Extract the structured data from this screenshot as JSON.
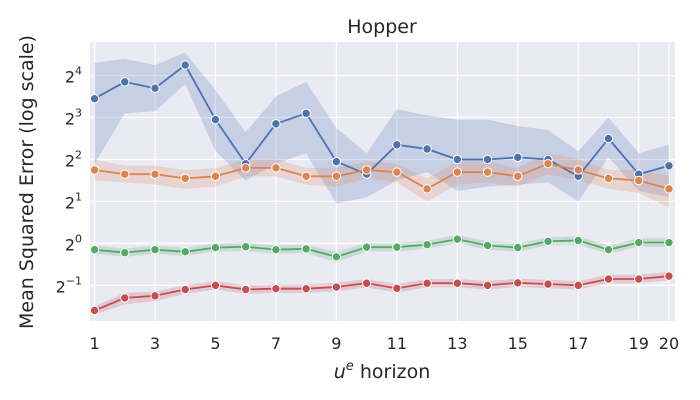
{
  "chart_data": {
    "type": "line",
    "title": "Hopper",
    "xlabel_main": "u",
    "xlabel_sup": "e",
    "xlabel_rest": " horizon",
    "ylabel": "Mean Squared Error (log scale)",
    "yscale": "log2",
    "x": [
      1,
      2,
      3,
      4,
      5,
      6,
      7,
      8,
      9,
      10,
      11,
      12,
      13,
      14,
      15,
      16,
      17,
      18,
      19,
      20
    ],
    "xticks": [
      {
        "value": 1,
        "label": "1"
      },
      {
        "value": 3,
        "label": "3"
      },
      {
        "value": 5,
        "label": "5"
      },
      {
        "value": 7,
        "label": "7"
      },
      {
        "value": 9,
        "label": "9"
      },
      {
        "value": 11,
        "label": "11"
      },
      {
        "value": 13,
        "label": "13"
      },
      {
        "value": 15,
        "label": "15"
      },
      {
        "value": 17,
        "label": "17"
      },
      {
        "value": 19,
        "label": "19"
      },
      {
        "value": 20,
        "label": "20"
      }
    ],
    "yticks": [
      {
        "exp": -1,
        "base": "2",
        "sup": "−1"
      },
      {
        "exp": 0,
        "base": "2",
        "sup": "0"
      },
      {
        "exp": 1,
        "base": "2",
        "sup": "1"
      },
      {
        "exp": 2,
        "base": "2",
        "sup": "2"
      },
      {
        "exp": 3,
        "base": "2",
        "sup": "3"
      },
      {
        "exp": 4,
        "base": "2",
        "sup": "4"
      }
    ],
    "ylim_log2": [
      -1.85,
      4.8
    ],
    "xlim": [
      0.85,
      20.2
    ],
    "grid": true,
    "series": [
      {
        "color": "#4c72b0",
        "log2_mean": [
          3.45,
          3.85,
          3.7,
          4.25,
          2.95,
          1.9,
          2.85,
          3.1,
          1.95,
          1.65,
          2.35,
          2.25,
          2.0,
          2.0,
          2.05,
          2.0,
          1.6,
          2.5,
          1.65,
          1.85
        ],
        "log2_lower": [
          1.9,
          3.1,
          3.15,
          3.8,
          2.2,
          1.5,
          1.9,
          2.15,
          0.95,
          1.1,
          1.5,
          1.7,
          1.25,
          1.35,
          1.4,
          1.45,
          1.0,
          2.05,
          1.25,
          1.1
        ],
        "log2_upper": [
          4.3,
          4.4,
          4.25,
          4.55,
          3.65,
          2.65,
          3.5,
          3.85,
          2.75,
          2.15,
          3.2,
          3.05,
          2.95,
          2.95,
          2.8,
          2.7,
          2.2,
          3.0,
          2.15,
          2.35
        ]
      },
      {
        "color": "#dd8452",
        "log2_mean": [
          1.75,
          1.65,
          1.65,
          1.55,
          1.6,
          1.8,
          1.8,
          1.6,
          1.6,
          1.75,
          1.7,
          1.3,
          1.7,
          1.7,
          1.6,
          1.9,
          1.75,
          1.55,
          1.5,
          1.3
        ],
        "log2_lower": [
          1.5,
          1.45,
          1.4,
          1.3,
          1.35,
          1.6,
          1.6,
          1.4,
          1.35,
          1.55,
          1.45,
          1.0,
          1.4,
          1.45,
          1.35,
          1.65,
          1.5,
          1.3,
          1.2,
          0.85
        ],
        "log2_upper": [
          2.0,
          1.85,
          1.85,
          1.75,
          1.8,
          2.0,
          2.0,
          1.8,
          1.8,
          1.95,
          1.9,
          1.55,
          1.95,
          1.95,
          1.8,
          2.15,
          2.0,
          1.75,
          1.75,
          1.6
        ]
      },
      {
        "color": "#55a868",
        "log2_mean": [
          -0.15,
          -0.22,
          -0.15,
          -0.2,
          -0.1,
          -0.08,
          -0.15,
          -0.13,
          -0.32,
          -0.09,
          -0.09,
          -0.03,
          0.1,
          -0.05,
          -0.1,
          0.05,
          0.07,
          -0.15,
          0.02,
          0.02
        ],
        "log2_lower": [
          -0.25,
          -0.32,
          -0.25,
          -0.3,
          -0.2,
          -0.18,
          -0.25,
          -0.23,
          -0.45,
          -0.19,
          -0.19,
          -0.13,
          0.0,
          -0.15,
          -0.2,
          -0.05,
          -0.03,
          -0.25,
          -0.08,
          -0.08
        ],
        "log2_upper": [
          -0.05,
          -0.12,
          -0.05,
          -0.1,
          0.0,
          0.02,
          -0.05,
          -0.03,
          -0.2,
          0.01,
          0.01,
          0.07,
          0.2,
          0.05,
          0.0,
          0.15,
          0.17,
          -0.05,
          0.12,
          0.12
        ]
      },
      {
        "color": "#c44e52",
        "log2_mean": [
          -1.6,
          -1.3,
          -1.25,
          -1.1,
          -1.0,
          -1.1,
          -1.08,
          -1.08,
          -1.04,
          -0.95,
          -1.07,
          -0.95,
          -0.95,
          -1.0,
          -0.94,
          -0.97,
          -1.0,
          -0.85,
          -0.85,
          -0.78
        ],
        "log2_lower": [
          -1.7,
          -1.45,
          -1.38,
          -1.2,
          -1.1,
          -1.2,
          -1.18,
          -1.18,
          -1.14,
          -1.05,
          -1.17,
          -1.05,
          -1.05,
          -1.1,
          -1.04,
          -1.07,
          -1.1,
          -0.95,
          -0.95,
          -0.88
        ],
        "log2_upper": [
          -1.5,
          -1.18,
          -1.15,
          -1.0,
          -0.9,
          -1.0,
          -0.98,
          -0.98,
          -0.94,
          -0.85,
          -0.97,
          -0.85,
          -0.85,
          -0.9,
          -0.84,
          -0.87,
          -0.9,
          -0.75,
          -0.75,
          -0.68
        ]
      }
    ]
  }
}
